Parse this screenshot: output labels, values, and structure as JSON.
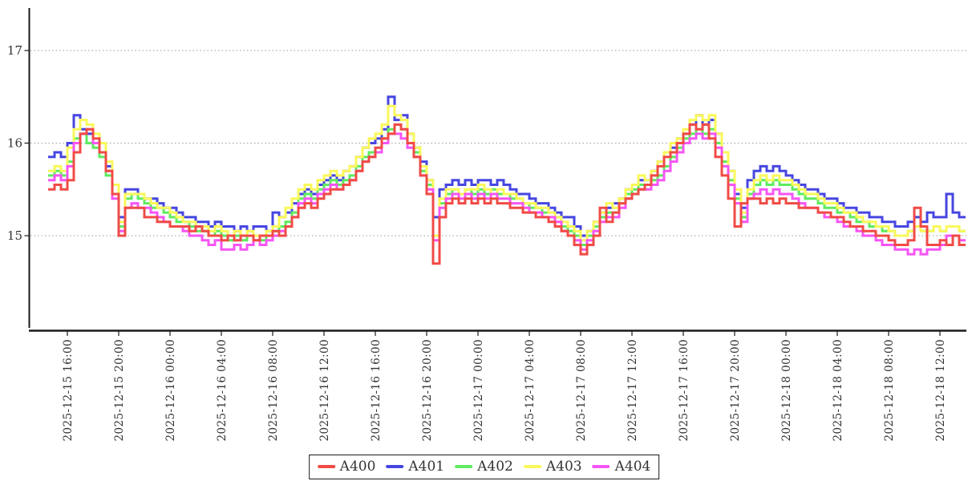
{
  "page": {
    "background": "#ffffff"
  },
  "chart_data": {
    "type": "line",
    "step": true,
    "title": "",
    "xlabel": "",
    "ylabel": "",
    "x_start": "2025-12-15 14:30",
    "x_interval_hours": 0.5,
    "x_tick_start_offset_hours": 1.5,
    "x_tick_interval_hours": 4,
    "x_tick_labels": [
      "2025-12-15 16:00",
      "2025-12-15 20:00",
      "2025-12-16 00:00",
      "2025-12-16 04:00",
      "2025-12-16 08:00",
      "2025-12-16 12:00",
      "2025-12-16 16:00",
      "2025-12-16 20:00",
      "2025-12-17 00:00",
      "2025-12-17 04:00",
      "2025-12-17 08:00",
      "2025-12-17 12:00",
      "2025-12-17 16:00",
      "2025-12-17 20:00",
      "2025-12-18 00:00",
      "2025-12-18 04:00",
      "2025-12-18 08:00",
      "2025-12-18 12:00"
    ],
    "y_ticks": [
      15,
      16,
      17
    ],
    "ylim": [
      13.95,
      17.45
    ],
    "grid": "horizontal-dotted",
    "grid_color": "#999999",
    "axis_color": "#1a1a1a",
    "legend_position": "bottom-center",
    "draw_order": [
      "A401",
      "A402",
      "A403",
      "A404",
      "A400"
    ],
    "series": [
      {
        "name": "A400",
        "color": "#f04b46",
        "values": [
          15.5,
          15.55,
          15.5,
          15.6,
          15.9,
          16.1,
          16.15,
          16.05,
          15.9,
          15.7,
          15.45,
          15.0,
          15.3,
          15.3,
          15.3,
          15.2,
          15.2,
          15.15,
          15.15,
          15.1,
          15.1,
          15.1,
          15.05,
          15.1,
          15.05,
          15.0,
          15.0,
          14.95,
          15.0,
          14.95,
          15.0,
          15.0,
          14.95,
          15.0,
          15.0,
          15.05,
          15.0,
          15.1,
          15.2,
          15.3,
          15.35,
          15.3,
          15.4,
          15.45,
          15.5,
          15.5,
          15.55,
          15.6,
          15.7,
          15.8,
          15.85,
          15.95,
          16.05,
          16.1,
          16.2,
          16.15,
          16.0,
          15.85,
          15.65,
          15.45,
          14.7,
          15.2,
          15.35,
          15.4,
          15.35,
          15.4,
          15.35,
          15.4,
          15.35,
          15.4,
          15.35,
          15.35,
          15.3,
          15.3,
          15.25,
          15.25,
          15.2,
          15.2,
          15.15,
          15.1,
          15.05,
          15.0,
          14.9,
          14.8,
          14.9,
          15.0,
          15.3,
          15.15,
          15.25,
          15.35,
          15.4,
          15.45,
          15.5,
          15.55,
          15.65,
          15.75,
          15.85,
          15.9,
          16.0,
          16.1,
          16.2,
          16.15,
          16.2,
          16.05,
          15.85,
          15.65,
          15.4,
          15.1,
          15.35,
          15.4,
          15.4,
          15.35,
          15.4,
          15.35,
          15.4,
          15.35,
          15.35,
          15.3,
          15.3,
          15.3,
          15.25,
          15.25,
          15.2,
          15.2,
          15.15,
          15.1,
          15.1,
          15.05,
          15.05,
          15.0,
          15.0,
          14.95,
          14.9,
          14.9,
          14.95,
          15.3,
          15.1,
          14.9,
          14.9,
          14.95,
          14.9,
          15.0,
          14.9
        ]
      },
      {
        "name": "A401",
        "color": "#4646e1",
        "values": [
          15.85,
          15.9,
          15.85,
          16.0,
          16.3,
          16.15,
          16.1,
          16.0,
          15.9,
          15.75,
          15.55,
          15.2,
          15.5,
          15.5,
          15.45,
          15.4,
          15.4,
          15.35,
          15.3,
          15.3,
          15.25,
          15.2,
          15.2,
          15.15,
          15.15,
          15.1,
          15.15,
          15.1,
          15.1,
          15.05,
          15.1,
          15.05,
          15.1,
          15.1,
          15.05,
          15.25,
          15.2,
          15.25,
          15.35,
          15.45,
          15.5,
          15.45,
          15.55,
          15.6,
          15.65,
          15.6,
          15.7,
          15.75,
          15.85,
          15.95,
          16.0,
          16.05,
          16.15,
          16.5,
          16.25,
          16.3,
          16.1,
          15.95,
          15.8,
          15.6,
          15.2,
          15.5,
          15.55,
          15.6,
          15.55,
          15.6,
          15.55,
          15.6,
          15.6,
          15.55,
          15.6,
          15.55,
          15.5,
          15.45,
          15.45,
          15.4,
          15.35,
          15.35,
          15.3,
          15.25,
          15.2,
          15.2,
          15.1,
          15.0,
          15.05,
          15.15,
          15.25,
          15.3,
          15.35,
          15.4,
          15.5,
          15.55,
          15.6,
          15.6,
          15.7,
          15.8,
          15.9,
          15.95,
          16.05,
          16.1,
          16.2,
          16.3,
          16.2,
          16.25,
          16.1,
          15.9,
          15.7,
          15.45,
          15.3,
          15.6,
          15.7,
          15.75,
          15.7,
          15.75,
          15.7,
          15.65,
          15.6,
          15.55,
          15.5,
          15.5,
          15.45,
          15.4,
          15.4,
          15.35,
          15.3,
          15.3,
          15.25,
          15.25,
          15.2,
          15.2,
          15.15,
          15.15,
          15.1,
          15.1,
          15.15,
          15.2,
          15.15,
          15.25,
          15.2,
          15.2,
          15.45,
          15.25,
          15.2
        ]
      },
      {
        "name": "A402",
        "color": "#5feb5f",
        "values": [
          15.65,
          15.7,
          15.65,
          15.8,
          16.05,
          16.1,
          16.0,
          15.95,
          15.85,
          15.65,
          15.45,
          15.1,
          15.4,
          15.45,
          15.4,
          15.35,
          15.3,
          15.3,
          15.25,
          15.2,
          15.15,
          15.15,
          15.1,
          15.05,
          15.05,
          15.0,
          15.05,
          15.0,
          14.95,
          15.0,
          14.95,
          15.0,
          15.0,
          14.95,
          15.0,
          15.05,
          15.1,
          15.15,
          15.25,
          15.4,
          15.45,
          15.4,
          15.5,
          15.55,
          15.6,
          15.55,
          15.6,
          15.65,
          15.75,
          15.85,
          15.9,
          15.95,
          16.05,
          16.15,
          16.2,
          16.15,
          16.0,
          15.9,
          15.7,
          15.55,
          15.0,
          15.35,
          15.45,
          15.5,
          15.45,
          15.5,
          15.45,
          15.5,
          15.45,
          15.5,
          15.45,
          15.45,
          15.4,
          15.4,
          15.35,
          15.3,
          15.3,
          15.25,
          15.25,
          15.2,
          15.1,
          15.05,
          15.0,
          14.9,
          15.0,
          15.1,
          15.2,
          15.25,
          15.25,
          15.35,
          15.45,
          15.5,
          15.55,
          15.55,
          15.6,
          15.65,
          15.75,
          15.85,
          15.95,
          16.05,
          16.1,
          16.15,
          16.1,
          16.15,
          16.0,
          15.8,
          15.6,
          15.4,
          15.2,
          15.45,
          15.55,
          15.6,
          15.55,
          15.6,
          15.55,
          15.55,
          15.5,
          15.45,
          15.4,
          15.4,
          15.35,
          15.3,
          15.3,
          15.25,
          15.25,
          15.2,
          15.15,
          15.15,
          15.1,
          15.1,
          15.05,
          15.05,
          15.0,
          15.0,
          15.05,
          15.1,
          15.05,
          15.05,
          15.1,
          15.05,
          15.1,
          15.1,
          15.05
        ]
      },
      {
        "name": "A403",
        "color": "#faf85a",
        "values": [
          15.7,
          15.75,
          15.7,
          15.95,
          16.15,
          16.25,
          16.2,
          16.1,
          16.0,
          15.8,
          15.55,
          15.15,
          15.45,
          15.45,
          15.45,
          15.4,
          15.35,
          15.3,
          15.3,
          15.25,
          15.2,
          15.15,
          15.15,
          15.1,
          15.1,
          15.05,
          15.1,
          15.05,
          15.0,
          15.05,
          15.0,
          15.05,
          15.0,
          15.0,
          15.05,
          15.1,
          15.2,
          15.3,
          15.4,
          15.5,
          15.55,
          15.5,
          15.6,
          15.65,
          15.7,
          15.65,
          15.7,
          15.75,
          15.85,
          15.95,
          16.05,
          16.1,
          16.2,
          16.4,
          16.3,
          16.25,
          16.1,
          15.95,
          15.75,
          15.6,
          15.0,
          15.4,
          15.5,
          15.5,
          15.45,
          15.5,
          15.5,
          15.55,
          15.5,
          15.45,
          15.5,
          15.45,
          15.45,
          15.4,
          15.35,
          15.35,
          15.3,
          15.3,
          15.25,
          15.2,
          15.15,
          15.1,
          15.05,
          14.95,
          15.05,
          15.15,
          15.25,
          15.35,
          15.3,
          15.4,
          15.5,
          15.55,
          15.65,
          15.6,
          15.7,
          15.8,
          15.9,
          16.0,
          16.05,
          16.15,
          16.25,
          16.3,
          16.25,
          16.3,
          16.1,
          15.9,
          15.7,
          15.5,
          15.25,
          15.5,
          15.6,
          15.65,
          15.6,
          15.65,
          15.6,
          15.6,
          15.55,
          15.5,
          15.45,
          15.45,
          15.4,
          15.35,
          15.35,
          15.3,
          15.25,
          15.25,
          15.2,
          15.15,
          15.15,
          15.1,
          15.1,
          15.05,
          15.0,
          15.0,
          15.05,
          15.1,
          15.05,
          15.05,
          15.1,
          15.05,
          15.1,
          15.1,
          15.05
        ]
      },
      {
        "name": "A404",
        "color": "#f555f5",
        "values": [
          15.6,
          15.65,
          15.6,
          15.75,
          16.0,
          16.1,
          16.15,
          16.0,
          15.9,
          15.7,
          15.4,
          15.05,
          15.3,
          15.35,
          15.3,
          15.3,
          15.25,
          15.2,
          15.15,
          15.1,
          15.1,
          15.05,
          15.0,
          15.0,
          14.95,
          14.9,
          14.95,
          14.85,
          14.85,
          14.9,
          14.85,
          14.9,
          14.95,
          14.9,
          14.95,
          15.0,
          15.05,
          15.1,
          15.2,
          15.35,
          15.4,
          15.35,
          15.45,
          15.5,
          15.55,
          15.5,
          15.55,
          15.6,
          15.7,
          15.8,
          15.85,
          15.9,
          16.0,
          16.1,
          16.1,
          16.05,
          15.95,
          15.85,
          15.65,
          15.5,
          14.95,
          15.3,
          15.4,
          15.45,
          15.4,
          15.45,
          15.4,
          15.45,
          15.4,
          15.45,
          15.4,
          15.4,
          15.35,
          15.35,
          15.3,
          15.25,
          15.25,
          15.2,
          15.2,
          15.15,
          15.05,
          15.0,
          14.95,
          14.85,
          14.95,
          15.05,
          15.15,
          15.2,
          15.2,
          15.3,
          15.4,
          15.45,
          15.5,
          15.5,
          15.55,
          15.6,
          15.7,
          15.8,
          15.9,
          16.0,
          16.05,
          16.1,
          16.05,
          16.1,
          15.95,
          15.75,
          15.55,
          15.35,
          15.15,
          15.4,
          15.45,
          15.5,
          15.45,
          15.5,
          15.45,
          15.45,
          15.4,
          15.35,
          15.3,
          15.3,
          15.25,
          15.2,
          15.2,
          15.15,
          15.1,
          15.1,
          15.05,
          15.0,
          15.0,
          14.95,
          14.9,
          14.9,
          14.85,
          14.85,
          14.8,
          14.85,
          14.8,
          14.85,
          14.85,
          14.9,
          15.0,
          15.0,
          14.95
        ]
      }
    ]
  }
}
